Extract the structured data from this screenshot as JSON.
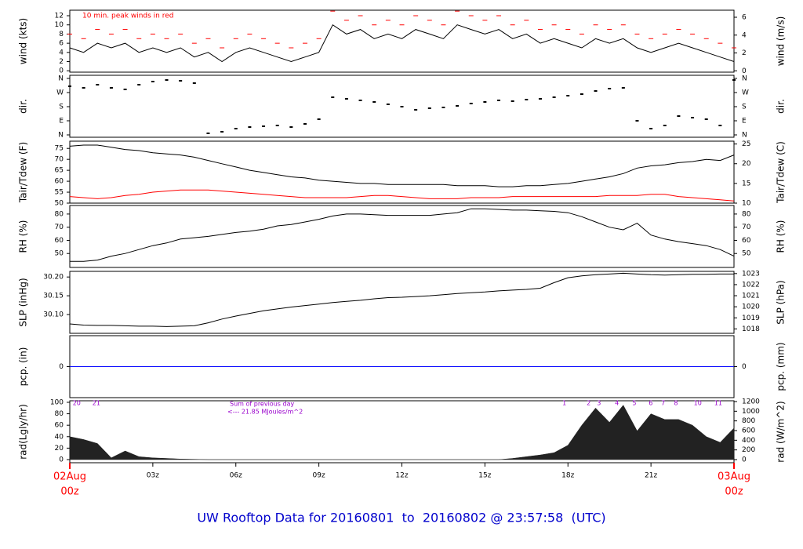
{
  "chart_data": {
    "type": "multi-panel",
    "footer": "UW Rooftop Data for 20160801  to  20160802 @ 23:57:58  (UTC)",
    "x": [
      0,
      0.5,
      1,
      1.5,
      2,
      2.5,
      3,
      3.5,
      4,
      4.5,
      5,
      5.5,
      6,
      6.5,
      7,
      7.5,
      8,
      8.5,
      9,
      9.5,
      10,
      10.5,
      11,
      11.5,
      12,
      12.5,
      13,
      13.5,
      14,
      14.5,
      15,
      15.5,
      16,
      16.5,
      17,
      17.5,
      18,
      18.5,
      19,
      19.5,
      20,
      20.5,
      21,
      21.5,
      22,
      22.5,
      23,
      23.5,
      24
    ],
    "xlim": [
      0,
      24
    ],
    "xticks": [
      {
        "value": 3,
        "label": "03z"
      },
      {
        "value": 6,
        "label": "06z"
      },
      {
        "value": 9,
        "label": "09z"
      },
      {
        "value": 12,
        "label": "12z"
      },
      {
        "value": 15,
        "label": "15z"
      },
      {
        "value": 18,
        "label": "18z"
      },
      {
        "value": 21,
        "label": "21z"
      }
    ],
    "x_start": {
      "value": 0,
      "date": "02Aug",
      "label": "00z"
    },
    "x_end": {
      "value": 24,
      "date": "03Aug",
      "label": "00z"
    },
    "panels": [
      {
        "type": "line",
        "ylabel": "wind (kts)",
        "y2label": "wind (m/s)",
        "note": "10 min. peak winds in red",
        "ylim": [
          -0.3,
          13.2
        ],
        "yticks": [
          0,
          2,
          4,
          6,
          8,
          10,
          12
        ],
        "y2lim": [
          -0.15,
          6.79
        ],
        "y2ticks": [
          0,
          2,
          4,
          6
        ],
        "series": [
          {
            "color": "#000000",
            "values": [
              5,
              4,
              6,
              5,
              6,
              4,
              5,
              4,
              5,
              3,
              4,
              2,
              4,
              5,
              4,
              3,
              2,
              3,
              4,
              10,
              8,
              9,
              7,
              8,
              7,
              9,
              8,
              7,
              10,
              9,
              8,
              9,
              7,
              8,
              6,
              7,
              6,
              5,
              7,
              6,
              7,
              5,
              4,
              5,
              6,
              5,
              4,
              3,
              2
            ]
          },
          {
            "color": "#ff0000",
            "style": "dash",
            "values": [
              8,
              7,
              9,
              8,
              9,
              7,
              8,
              7,
              8,
              6,
              7,
              5,
              7,
              8,
              7,
              6,
              5,
              6,
              7,
              13,
              11,
              12,
              10,
              11,
              10,
              12,
              11,
              10,
              13,
              12,
              11,
              12,
              10,
              11,
              9,
              10,
              9,
              8,
              10,
              9,
              10,
              8,
              7,
              8,
              9,
              8,
              7,
              6,
              5
            ]
          }
        ]
      },
      {
        "type": "scatter",
        "ylabel": "dir.",
        "y2label": "dir.",
        "ylim": [
          -15,
          380
        ],
        "yticks": [
          {
            "value": 0,
            "label": "N"
          },
          {
            "value": 90,
            "label": "E"
          },
          {
            "value": 180,
            "label": "S"
          },
          {
            "value": 270,
            "label": "W"
          },
          {
            "value": 360,
            "label": "N"
          }
        ],
        "y2lim": [
          -15,
          380
        ],
        "y2ticks": [
          {
            "value": 0,
            "label": "N"
          },
          {
            "value": 90,
            "label": "E"
          },
          {
            "value": 180,
            "label": "S"
          },
          {
            "value": 270,
            "label": "W"
          },
          {
            "value": 360,
            "label": "N"
          }
        ],
        "series": [
          {
            "color": "#000000",
            "values": [
              310,
              300,
              320,
              300,
              290,
              320,
              340,
              350,
              345,
              330,
              10,
              20,
              40,
              50,
              55,
              60,
              50,
              70,
              100,
              240,
              230,
              220,
              210,
              195,
              180,
              160,
              170,
              175,
              185,
              200,
              210,
              220,
              215,
              225,
              230,
              240,
              250,
              260,
              280,
              295,
              300,
              90,
              40,
              60,
              120,
              110,
              100,
              60,
              350
            ]
          }
        ]
      },
      {
        "type": "line",
        "ylabel": "Tair/Tdew (F)",
        "y2label": "Tair/Tdew (C)",
        "ylim": [
          50,
          78.3
        ],
        "yticks": [
          50,
          55,
          60,
          65,
          70,
          75
        ],
        "y2lim": [
          10,
          25.72
        ],
        "y2ticks": [
          10,
          15,
          20,
          25
        ],
        "series": [
          {
            "color": "#000000",
            "values": [
              76,
              76.5,
              76.5,
              75.5,
              74.5,
              74,
              73,
              72.5,
              72,
              71,
              69.5,
              68,
              66.5,
              65,
              64,
              63,
              62,
              61.5,
              60.5,
              60,
              59.5,
              59,
              59,
              58.5,
              58.5,
              58.5,
              58.5,
              58.5,
              58,
              58,
              58,
              57.5,
              57.5,
              58,
              58,
              58.5,
              59,
              60,
              61,
              62,
              63.5,
              66,
              67,
              67.5,
              68.5,
              69,
              70,
              69.5,
              72
            ]
          },
          {
            "color": "#ff0000",
            "values": [
              53,
              52.5,
              52,
              52.5,
              53.5,
              54,
              55,
              55.5,
              56,
              56,
              56,
              55.5,
              55,
              54.5,
              54,
              53.5,
              53,
              52.5,
              52.5,
              52.5,
              52.5,
              53,
              53.5,
              53.5,
              53,
              52.5,
              52,
              52,
              52,
              52.5,
              52.5,
              52.5,
              53,
              53,
              53,
              53,
              53,
              53,
              53,
              53.5,
              53.5,
              53.5,
              54,
              54,
              53,
              52.5,
              52,
              51.5,
              51
            ]
          }
        ]
      },
      {
        "type": "line",
        "ylabel": "RH (%)",
        "y2label": "RH (%)",
        "ylim": [
          39.4,
          86.5
        ],
        "yticks": [
          50,
          60,
          70,
          80
        ],
        "y2lim": [
          39.4,
          86.5
        ],
        "y2ticks": [
          50,
          60,
          70,
          80
        ],
        "series": [
          {
            "color": "#000000",
            "values": [
              44,
              44,
              45,
              48,
              50,
              53,
              56,
              58,
              61,
              62,
              63,
              64.5,
              66,
              67,
              68.5,
              71,
              72,
              74,
              76,
              78.5,
              80,
              80,
              79.5,
              79,
              79,
              79,
              79,
              80,
              81,
              84,
              84,
              83.5,
              83,
              83,
              82.5,
              82,
              81,
              78,
              74,
              70,
              68,
              73,
              64,
              61,
              59,
              57.5,
              56,
              53,
              48
            ]
          }
        ]
      },
      {
        "type": "line",
        "ylabel": "SLP (inHg)",
        "y2label": "SLP (hPa)",
        "ylim": [
          30.05,
          30.215
        ],
        "yticks": [
          {
            "value": 30.1,
            "label": "30.10"
          },
          {
            "value": 30.15,
            "label": "30.15"
          },
          {
            "value": 30.2,
            "label": "30.20"
          }
        ],
        "y2lim": [
          1017.6,
          1023.2
        ],
        "y2ticks": [
          1018,
          1019,
          1020,
          1021,
          1022,
          1023
        ],
        "series": [
          {
            "color": "#000000",
            "values": [
              30.075,
              30.072,
              30.071,
              30.071,
              30.07,
              30.069,
              30.069,
              30.068,
              30.069,
              30.07,
              30.078,
              30.088,
              30.096,
              30.103,
              30.11,
              30.115,
              30.12,
              30.124,
              30.128,
              30.132,
              30.135,
              30.138,
              30.142,
              30.145,
              30.146,
              30.148,
              30.15,
              30.153,
              30.156,
              30.158,
              30.16,
              30.163,
              30.165,
              30.167,
              30.17,
              30.185,
              30.198,
              30.203,
              30.206,
              30.208,
              30.21,
              30.208,
              30.206,
              30.205,
              30.206,
              30.207,
              30.207,
              30.208,
              30.208
            ]
          }
        ]
      },
      {
        "type": "line",
        "ylabel": "pcp. (in)",
        "y2label": "pcp. (mm)",
        "ylim": [
          -0.5,
          0.5
        ],
        "yticks": [
          0
        ],
        "y2lim": [
          -12.7,
          12.7
        ],
        "y2ticks": [
          0
        ],
        "series": [
          {
            "color": "#0000ff",
            "values": [
              0,
              0,
              0,
              0,
              0,
              0,
              0,
              0,
              0,
              0,
              0,
              0,
              0,
              0,
              0,
              0,
              0,
              0,
              0,
              0,
              0,
              0,
              0,
              0,
              0,
              0,
              0,
              0,
              0,
              0,
              0,
              0,
              0,
              0,
              0,
              0,
              0,
              0,
              0,
              0,
              0,
              0,
              0,
              0,
              0,
              0,
              0,
              0,
              0
            ]
          }
        ]
      },
      {
        "type": "area",
        "ylabel": "rad(Lgly/hr)",
        "y2label": "rad (W/m^2)",
        "notes": [
          "Sum of previous day",
          "<--- 21.85 MJoules/m^2"
        ],
        "hour_marks": [
          {
            "label": "20",
            "x": 0.25
          },
          {
            "label": "21",
            "x": 0.96
          },
          {
            "label": "1",
            "x": 17.87
          },
          {
            "label": "2",
            "x": 18.75
          },
          {
            "label": "3",
            "x": 19.12
          },
          {
            "label": "4",
            "x": 19.77
          },
          {
            "label": "5",
            "x": 20.4
          },
          {
            "label": "6",
            "x": 20.99
          },
          {
            "label": "7",
            "x": 21.44
          },
          {
            "label": "8",
            "x": 21.9
          },
          {
            "label": "10",
            "x": 22.69
          },
          {
            "label": "11",
            "x": 23.43
          }
        ],
        "ylim": [
          -5.5,
          102.7
        ],
        "yticks": [
          0,
          20,
          40,
          60,
          80,
          100
        ],
        "y2lim": [
          -65,
          1216
        ],
        "y2ticks": [
          0,
          200,
          400,
          600,
          800,
          1000,
          1200
        ],
        "series": [
          {
            "color": "#222222",
            "values": [
              40,
              35,
              28,
              3,
              15,
              5,
              3,
              2,
              1,
              0.5,
              0,
              0,
              0,
              0,
              0,
              0,
              0,
              0,
              0,
              0,
              0,
              0,
              0,
              0,
              0,
              0,
              0,
              0,
              0,
              0,
              0,
              0,
              2,
              5,
              8,
              12,
              25,
              60,
              90,
              65,
              95,
              50,
              80,
              70,
              70,
              60,
              40,
              30,
              55
            ]
          }
        ]
      }
    ]
  }
}
